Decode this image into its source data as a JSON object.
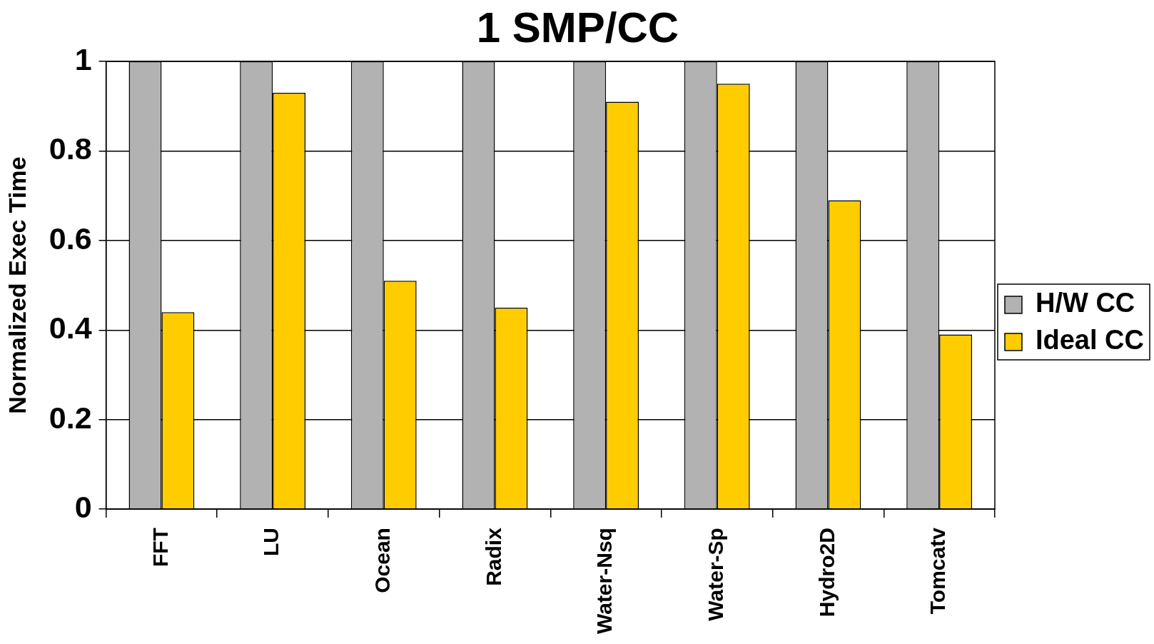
{
  "chart_data": {
    "type": "bar",
    "title": "1 SMP/CC",
    "ylabel": "Normalized Exec Time",
    "categories": [
      "FFT",
      "LU",
      "Ocean",
      "Radix",
      "Water-Nsq",
      "Water-Sp",
      "Hydro2D",
      "Tomcatv"
    ],
    "series": [
      {
        "name": "H/W CC",
        "color": "#b2b2b2",
        "values": [
          1,
          1,
          1,
          1,
          1,
          1,
          1,
          1
        ]
      },
      {
        "name": "Ideal CC",
        "color": "#ffcc00",
        "values": [
          0.44,
          0.93,
          0.51,
          0.45,
          0.91,
          0.95,
          0.69,
          0.39
        ]
      }
    ],
    "ylim": [
      0,
      1
    ],
    "yticks": [
      0,
      0.2,
      0.4,
      0.6,
      0.8,
      1
    ],
    "grid": "y",
    "legend": "right"
  }
}
